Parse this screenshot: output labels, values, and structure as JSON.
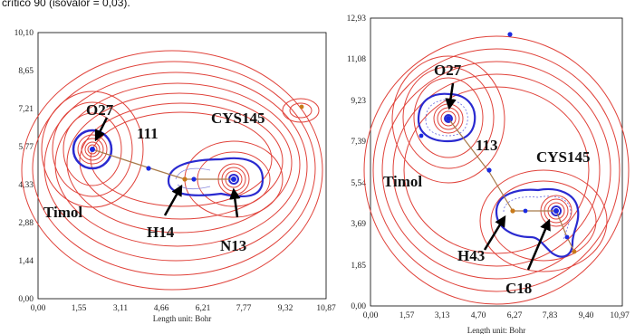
{
  "caption": "crítico 90 (isovalor = 0,03).",
  "unit_label": "Length unit: Bohr",
  "colors": {
    "contour": "#e0423a",
    "inner": "#2a2ad0",
    "bond_path": "#a87a4a",
    "cp": "#1a2ae0",
    "cp_alt": "#c87a1a"
  },
  "left_panel": {
    "x_ticks": [
      "0,00",
      "1,55",
      "3,11",
      "4,66",
      "6,21",
      "7,77",
      "9,32",
      "10,87"
    ],
    "y_ticks": [
      "10,10",
      "8,65",
      "7,21",
      "5,77",
      "4,33",
      "2,88",
      "1,44",
      "0,00"
    ],
    "labels": {
      "o27": "O27",
      "cp": "111",
      "cys": "CYS145",
      "timol": "Timol",
      "h14": "H14",
      "n13": "N13"
    }
  },
  "right_panel": {
    "x_ticks": [
      "0,00",
      "1,57",
      "3,13",
      "4,70",
      "6,27",
      "7,83",
      "9,40",
      "10,97"
    ],
    "y_ticks": [
      "12,93",
      "11,08",
      "9,23",
      "7,39",
      "5,54",
      "3,69",
      "1,85",
      "0,00"
    ],
    "labels": {
      "o27": "O27",
      "cp": "113",
      "cys": "CYS145",
      "timol": "Timol",
      "h43": "H43",
      "c18": "C18"
    }
  }
}
